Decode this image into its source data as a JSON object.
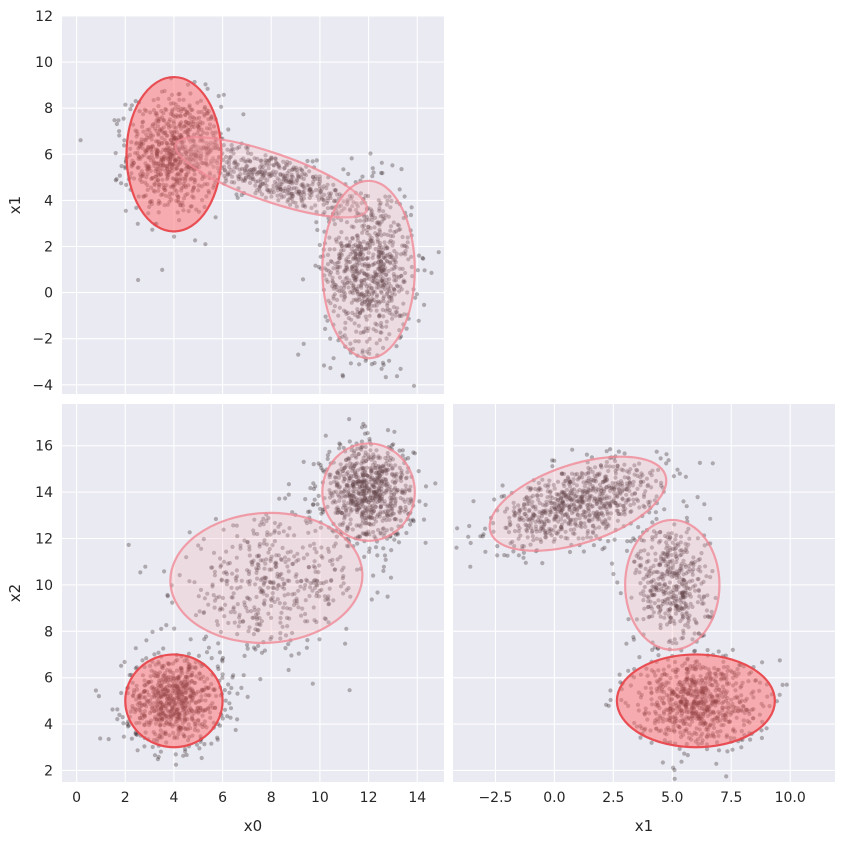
{
  "chart_data": [
    {
      "panel": "x0-vs-x1",
      "type": "scatter",
      "title": "",
      "xlabel": "",
      "ylabel": "x1",
      "xlim": [
        -0.6,
        15.1
      ],
      "ylim": [
        -4.4,
        12
      ],
      "xticks": [],
      "yticks": [
        -4,
        -2,
        0,
        2,
        4,
        6,
        8,
        10,
        12
      ],
      "ytick_labels": [
        "−4",
        "−2",
        "0",
        "2",
        "4",
        "6",
        "8",
        "10",
        "12"
      ],
      "grid": true,
      "clusters": [
        {
          "cx": 4.0,
          "cy": 6.0,
          "sx": 0.95,
          "sy": 1.3,
          "rho": 0.0,
          "n": 700
        },
        {
          "cx": 8.0,
          "cy": 5.0,
          "sx": 2.0,
          "sy": 0.8,
          "rho": -0.75,
          "n": 450
        },
        {
          "cx": 12.0,
          "cy": 1.0,
          "sx": 0.9,
          "sy": 1.75,
          "rho": 0.0,
          "n": 750
        }
      ],
      "ellipses": [
        {
          "cx": 4.0,
          "cy": 6.0,
          "w": 3.9,
          "h": 6.7,
          "angle": 0,
          "fill": "#ff6b6b",
          "fill_opacity": 0.5,
          "stroke": "#e8474c",
          "stroke_opacity": 0.95
        },
        {
          "cx": 8.0,
          "cy": 5.0,
          "w": 8.3,
          "h": 2.1,
          "angle": -19,
          "fill": "#f4b2bc",
          "fill_opacity": 0.28,
          "stroke": "#f08a96",
          "stroke_opacity": 0.8
        },
        {
          "cx": 12.0,
          "cy": 1.0,
          "w": 3.8,
          "h": 7.7,
          "angle": 0,
          "fill": "#f4b2bc",
          "fill_opacity": 0.28,
          "stroke": "#f08a96",
          "stroke_opacity": 0.8
        }
      ]
    },
    {
      "panel": "x0-vs-x2",
      "type": "scatter",
      "title": "",
      "xlabel": "x0",
      "ylabel": "x2",
      "xlim": [
        -0.6,
        15.1
      ],
      "ylim": [
        1.5,
        17.8
      ],
      "xticks": [
        0,
        2,
        4,
        6,
        8,
        10,
        12,
        14
      ],
      "xtick_labels": [
        "0",
        "2",
        "4",
        "6",
        "8",
        "10",
        "12",
        "14"
      ],
      "yticks": [
        2,
        4,
        6,
        8,
        10,
        12,
        14,
        16
      ],
      "ytick_labels": [
        "2",
        "4",
        "6",
        "8",
        "10",
        "12",
        "14",
        "16"
      ],
      "grid": true,
      "clusters": [
        {
          "cx": 4.0,
          "cy": 5.0,
          "sx": 1.0,
          "sy": 0.95,
          "rho": 0.0,
          "n": 700
        },
        {
          "cx": 8.0,
          "cy": 10.0,
          "sx": 1.95,
          "sy": 1.45,
          "rho": 0.15,
          "n": 450
        },
        {
          "cx": 12.0,
          "cy": 14.0,
          "sx": 0.9,
          "sy": 1.05,
          "rho": 0.0,
          "n": 750
        }
      ],
      "ellipses": [
        {
          "cx": 4.0,
          "cy": 5.0,
          "w": 4.0,
          "h": 4.0,
          "angle": 0,
          "fill": "#ff6b6b",
          "fill_opacity": 0.5,
          "stroke": "#e8474c",
          "stroke_opacity": 0.95
        },
        {
          "cx": 7.8,
          "cy": 10.3,
          "w": 7.9,
          "h": 5.6,
          "angle": 3,
          "fill": "#f4b2bc",
          "fill_opacity": 0.28,
          "stroke": "#f08a96",
          "stroke_opacity": 0.8
        },
        {
          "cx": 12.0,
          "cy": 14.0,
          "w": 3.8,
          "h": 4.2,
          "angle": 0,
          "fill": "#f4b2bc",
          "fill_opacity": 0.28,
          "stroke": "#f08a96",
          "stroke_opacity": 0.8
        }
      ]
    },
    {
      "panel": "x1-vs-x2",
      "type": "scatter",
      "title": "",
      "xlabel": "x1",
      "ylabel": "",
      "xlim": [
        -4.3,
        11.9
      ],
      "ylim": [
        1.5,
        17.8
      ],
      "xticks": [
        -2.5,
        0,
        2.5,
        5,
        7.5,
        10
      ],
      "xtick_labels": [
        "−2.5",
        "0.0",
        "2.5",
        "5.0",
        "7.5",
        "10.0"
      ],
      "yticks": [
        2,
        4,
        6,
        8,
        10,
        12,
        14,
        16
      ],
      "ytick_labels": [],
      "grid": true,
      "clusters": [
        {
          "cx": 1.0,
          "cy": 13.5,
          "sx": 1.75,
          "sy": 0.9,
          "rho": 0.5,
          "n": 750
        },
        {
          "cx": 5.0,
          "cy": 10.0,
          "sx": 0.8,
          "sy": 1.45,
          "rho": -0.1,
          "n": 450
        },
        {
          "cx": 6.0,
          "cy": 5.0,
          "sx": 1.3,
          "sy": 0.95,
          "rho": 0.0,
          "n": 700
        }
      ],
      "ellipses": [
        {
          "cx": 1.0,
          "cy": 13.5,
          "w": 7.8,
          "h": 3.4,
          "angle": 18,
          "fill": "#f4b2bc",
          "fill_opacity": 0.28,
          "stroke": "#f08a96",
          "stroke_opacity": 0.8
        },
        {
          "cx": 5.0,
          "cy": 10.0,
          "w": 4.0,
          "h": 5.6,
          "angle": 0,
          "fill": "#f4b2bc",
          "fill_opacity": 0.28,
          "stroke": "#f08a96",
          "stroke_opacity": 0.8
        },
        {
          "cx": 6.0,
          "cy": 5.0,
          "w": 6.7,
          "h": 4.0,
          "angle": 0,
          "fill": "#ff6b6b",
          "fill_opacity": 0.5,
          "stroke": "#e8474c",
          "stroke_opacity": 0.95
        }
      ]
    }
  ],
  "style": {
    "axes_background": "#eaeaf2",
    "grid_color": "#ffffff",
    "point_color": "#2b1c1f",
    "point_opacity": 0.32
  }
}
